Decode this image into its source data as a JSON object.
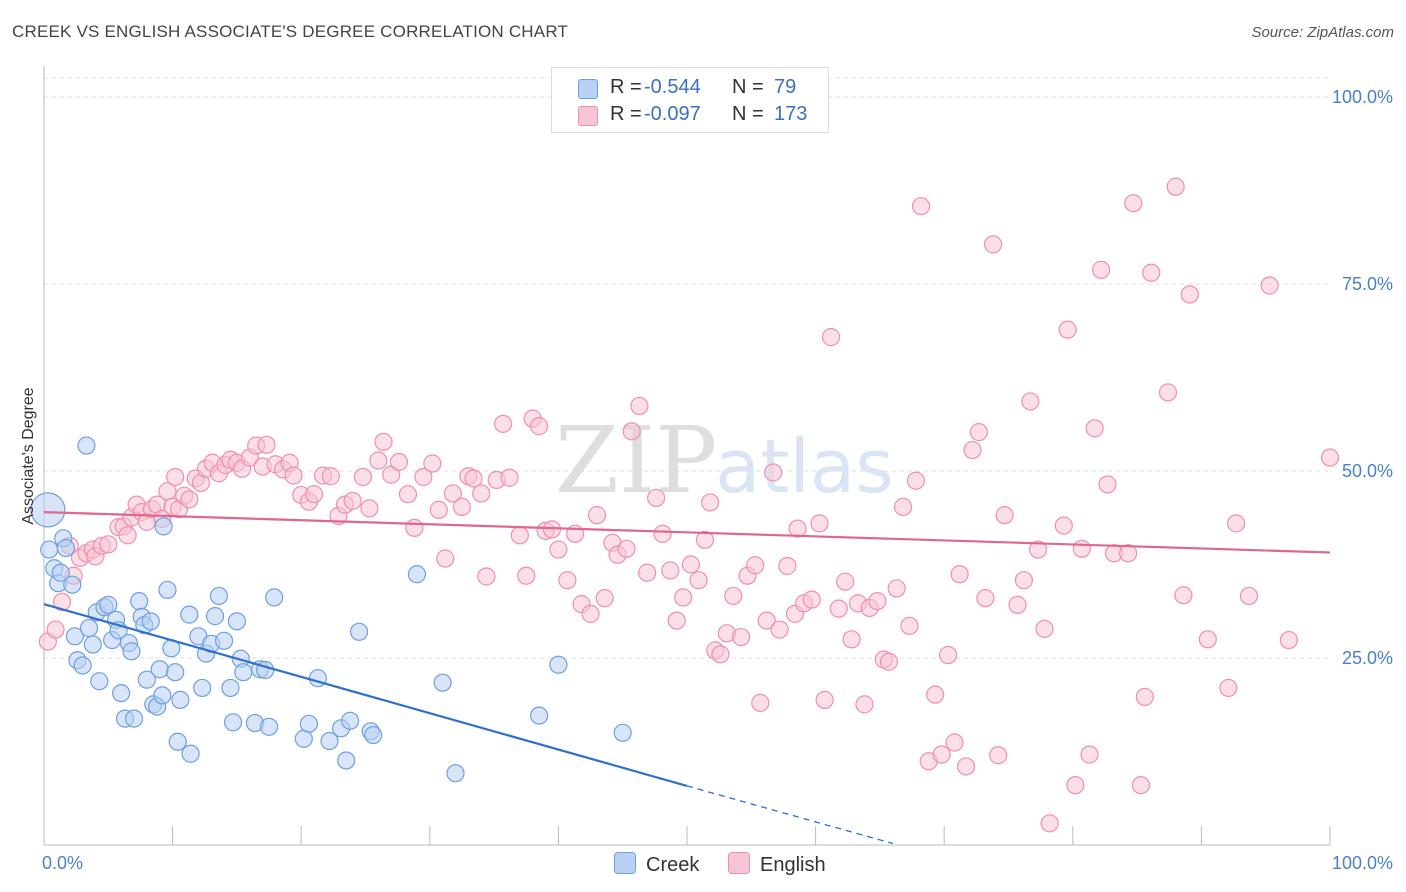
{
  "title": "CREEK VS ENGLISH ASSOCIATE'S DEGREE CORRELATION CHART",
  "source": "Source: ZipAtlas.com",
  "colors": {
    "creek": "#6f9fe0",
    "creek_fill": "#b8d0f2",
    "creek_line": "#2e6fd0",
    "english": "#ef8fae",
    "english_fill": "#f7c4d4",
    "english_line": "#e06690"
  },
  "legend": {
    "creek": {
      "r_label": "R =",
      "r_value": "-0.544",
      "n_label": "N =",
      "n_value": "79"
    },
    "english": {
      "r_label": "R =",
      "r_value": "-0.097",
      "n_label": "N =",
      "n_value": "173"
    }
  },
  "chart_data": {
    "type": "scatter",
    "title": "CREEK VS ENGLISH ASSOCIATE'S DEGREE CORRELATION CHART",
    "xlabel": "",
    "ylabel": "Associate's Degree",
    "xlim": [
      0,
      100
    ],
    "ylim": [
      0,
      100
    ],
    "x_tick_labels": [
      "0.0%",
      "100.0%"
    ],
    "y_tick_labels": [
      "25.0%",
      "50.0%",
      "75.0%",
      "100.0%"
    ],
    "y_ticks": [
      25,
      50,
      75,
      100
    ],
    "grid": true,
    "legend_position": "top-center",
    "series": [
      {
        "name": "Creek",
        "trend": {
          "x": [
            0,
            50
          ],
          "y": [
            32.2,
            7.9
          ],
          "dashed_to": [
            66,
            0.2
          ]
        },
        "points": [
          [
            0.3,
            44.8
          ],
          [
            0.4,
            39.5
          ],
          [
            0.8,
            37.0
          ],
          [
            1.1,
            35.0
          ],
          [
            1.3,
            36.4
          ],
          [
            1.5,
            41.0
          ],
          [
            1.7,
            39.7
          ],
          [
            2.2,
            34.8
          ],
          [
            2.4,
            27.9
          ],
          [
            2.6,
            24.7
          ],
          [
            3.0,
            24.0
          ],
          [
            3.3,
            53.4
          ],
          [
            3.5,
            29.0
          ],
          [
            3.8,
            26.8
          ],
          [
            4.1,
            31.1
          ],
          [
            4.3,
            21.9
          ],
          [
            4.7,
            31.8
          ],
          [
            5.0,
            32.1
          ],
          [
            5.3,
            27.4
          ],
          [
            5.6,
            30.1
          ],
          [
            5.8,
            28.7
          ],
          [
            6.0,
            20.3
          ],
          [
            6.3,
            16.9
          ],
          [
            6.6,
            27.0
          ],
          [
            6.8,
            25.9
          ],
          [
            7.0,
            16.9
          ],
          [
            7.4,
            32.6
          ],
          [
            7.6,
            30.5
          ],
          [
            7.8,
            29.4
          ],
          [
            8.0,
            22.1
          ],
          [
            8.3,
            29.9
          ],
          [
            8.5,
            18.8
          ],
          [
            8.8,
            18.5
          ],
          [
            9.0,
            23.5
          ],
          [
            9.2,
            20.0
          ],
          [
            9.3,
            42.6
          ],
          [
            9.6,
            34.1
          ],
          [
            9.9,
            26.3
          ],
          [
            10.2,
            23.1
          ],
          [
            10.4,
            13.8
          ],
          [
            10.6,
            19.4
          ],
          [
            11.3,
            30.8
          ],
          [
            11.4,
            12.2
          ],
          [
            12.0,
            27.9
          ],
          [
            12.3,
            21.0
          ],
          [
            12.6,
            25.6
          ],
          [
            13.0,
            26.9
          ],
          [
            13.3,
            30.6
          ],
          [
            13.6,
            33.3
          ],
          [
            14.0,
            27.3
          ],
          [
            14.5,
            21.0
          ],
          [
            14.7,
            16.4
          ],
          [
            15.0,
            29.9
          ],
          [
            15.3,
            24.9
          ],
          [
            15.5,
            23.1
          ],
          [
            16.4,
            16.3
          ],
          [
            16.8,
            23.5
          ],
          [
            17.2,
            23.4
          ],
          [
            17.5,
            15.8
          ],
          [
            17.9,
            33.1
          ],
          [
            20.2,
            14.2
          ],
          [
            20.6,
            16.2
          ],
          [
            21.3,
            22.3
          ],
          [
            22.2,
            13.9
          ],
          [
            23.1,
            15.6
          ],
          [
            23.5,
            11.3
          ],
          [
            23.8,
            16.6
          ],
          [
            24.5,
            28.5
          ],
          [
            25.4,
            15.2
          ],
          [
            25.6,
            14.7
          ],
          [
            29.0,
            36.2
          ],
          [
            31.0,
            21.7
          ],
          [
            32.0,
            9.6
          ],
          [
            38.5,
            17.3
          ],
          [
            40.0,
            24.1
          ],
          [
            45.0,
            15.0
          ]
        ]
      },
      {
        "name": "English",
        "trend": {
          "x": [
            0,
            100
          ],
          "y": [
            44.5,
            39.1
          ]
        },
        "points": [
          [
            0.3,
            27.2
          ],
          [
            0.9,
            28.8
          ],
          [
            1.4,
            32.5
          ],
          [
            2.0,
            40.0
          ],
          [
            2.3,
            36.0
          ],
          [
            2.8,
            38.4
          ],
          [
            3.3,
            39.0
          ],
          [
            3.8,
            39.5
          ],
          [
            4.0,
            38.6
          ],
          [
            4.5,
            40.0
          ],
          [
            5.0,
            40.2
          ],
          [
            5.8,
            42.5
          ],
          [
            6.2,
            42.6
          ],
          [
            6.5,
            41.4
          ],
          [
            6.8,
            43.8
          ],
          [
            7.2,
            45.5
          ],
          [
            7.6,
            44.5
          ],
          [
            8.0,
            43.2
          ],
          [
            8.4,
            44.9
          ],
          [
            8.8,
            45.5
          ],
          [
            9.2,
            43.6
          ],
          [
            9.6,
            47.3
          ],
          [
            10.0,
            45.2
          ],
          [
            10.2,
            49.2
          ],
          [
            10.5,
            44.9
          ],
          [
            10.9,
            46.7
          ],
          [
            11.3,
            46.2
          ],
          [
            11.8,
            49.0
          ],
          [
            12.2,
            48.4
          ],
          [
            12.6,
            50.3
          ],
          [
            13.1,
            51.1
          ],
          [
            13.6,
            49.7
          ],
          [
            14.1,
            50.8
          ],
          [
            14.5,
            51.5
          ],
          [
            15.0,
            51.1
          ],
          [
            15.4,
            50.3
          ],
          [
            16.0,
            51.8
          ],
          [
            16.5,
            53.4
          ],
          [
            17.0,
            50.6
          ],
          [
            17.3,
            53.5
          ],
          [
            18.0,
            50.9
          ],
          [
            18.6,
            50.2
          ],
          [
            19.1,
            51.1
          ],
          [
            19.4,
            49.4
          ],
          [
            20.0,
            46.8
          ],
          [
            20.6,
            45.9
          ],
          [
            21.0,
            46.9
          ],
          [
            21.7,
            49.4
          ],
          [
            22.3,
            49.3
          ],
          [
            22.9,
            44.0
          ],
          [
            23.4,
            45.5
          ],
          [
            24.0,
            46.0
          ],
          [
            24.8,
            49.2
          ],
          [
            25.3,
            45.0
          ],
          [
            26.0,
            51.4
          ],
          [
            26.4,
            53.9
          ],
          [
            27.0,
            49.5
          ],
          [
            27.6,
            51.2
          ],
          [
            28.3,
            46.9
          ],
          [
            28.8,
            42.4
          ],
          [
            29.5,
            49.2
          ],
          [
            30.2,
            51.0
          ],
          [
            30.7,
            44.8
          ],
          [
            31.2,
            38.3
          ],
          [
            31.8,
            47.0
          ],
          [
            32.5,
            45.2
          ],
          [
            33.0,
            49.3
          ],
          [
            33.4,
            49.0
          ],
          [
            34.0,
            47.0
          ],
          [
            34.4,
            35.9
          ],
          [
            35.2,
            48.8
          ],
          [
            35.7,
            56.3
          ],
          [
            36.2,
            49.1
          ],
          [
            37.0,
            41.4
          ],
          [
            37.5,
            36.0
          ],
          [
            38.0,
            57.0
          ],
          [
            38.5,
            56.0
          ],
          [
            39.0,
            42.0
          ],
          [
            39.5,
            42.2
          ],
          [
            40.0,
            39.5
          ],
          [
            40.7,
            35.4
          ],
          [
            41.3,
            41.6
          ],
          [
            41.8,
            32.2
          ],
          [
            42.5,
            30.9
          ],
          [
            43.0,
            44.1
          ],
          [
            43.6,
            33.0
          ],
          [
            44.2,
            40.4
          ],
          [
            44.6,
            38.8
          ],
          [
            45.3,
            39.6
          ],
          [
            45.7,
            55.3
          ],
          [
            46.3,
            58.7
          ],
          [
            46.9,
            36.4
          ],
          [
            47.6,
            46.4
          ],
          [
            48.1,
            41.6
          ],
          [
            48.7,
            36.7
          ],
          [
            49.2,
            30.0
          ],
          [
            49.7,
            33.1
          ],
          [
            50.3,
            37.5
          ],
          [
            50.9,
            35.4
          ],
          [
            51.4,
            40.8
          ],
          [
            51.8,
            45.8
          ],
          [
            52.2,
            26.0
          ],
          [
            52.6,
            25.5
          ],
          [
            53.1,
            28.3
          ],
          [
            53.6,
            33.3
          ],
          [
            54.2,
            27.8
          ],
          [
            54.7,
            36.0
          ],
          [
            55.3,
            37.4
          ],
          [
            55.7,
            19.0
          ],
          [
            56.2,
            30.0
          ],
          [
            56.7,
            49.8
          ],
          [
            57.2,
            28.8
          ],
          [
            57.8,
            37.3
          ],
          [
            58.4,
            30.9
          ],
          [
            58.6,
            42.3
          ],
          [
            59.1,
            32.3
          ],
          [
            59.7,
            32.8
          ],
          [
            60.3,
            43.0
          ],
          [
            60.7,
            19.4
          ],
          [
            61.2,
            67.9
          ],
          [
            61.8,
            31.6
          ],
          [
            62.3,
            35.2
          ],
          [
            62.8,
            27.5
          ],
          [
            63.3,
            32.3
          ],
          [
            63.8,
            18.8
          ],
          [
            64.2,
            31.7
          ],
          [
            64.8,
            32.6
          ],
          [
            65.3,
            24.8
          ],
          [
            65.7,
            24.5
          ],
          [
            66.3,
            34.3
          ],
          [
            66.8,
            45.2
          ],
          [
            67.3,
            29.3
          ],
          [
            67.8,
            48.7
          ],
          [
            68.2,
            85.4
          ],
          [
            68.8,
            11.2
          ],
          [
            69.3,
            20.1
          ],
          [
            69.8,
            12.1
          ],
          [
            70.3,
            25.4
          ],
          [
            70.8,
            13.7
          ],
          [
            71.2,
            36.2
          ],
          [
            71.7,
            10.5
          ],
          [
            72.2,
            52.8
          ],
          [
            72.7,
            55.2
          ],
          [
            73.2,
            33.0
          ],
          [
            73.8,
            80.3
          ],
          [
            74.2,
            12.0
          ],
          [
            74.7,
            44.1
          ],
          [
            75.7,
            32.1
          ],
          [
            76.2,
            35.4
          ],
          [
            76.7,
            59.3
          ],
          [
            77.3,
            39.5
          ],
          [
            77.8,
            28.9
          ],
          [
            78.2,
            2.9
          ],
          [
            79.3,
            42.7
          ],
          [
            79.6,
            68.9
          ],
          [
            80.2,
            8.0
          ],
          [
            80.7,
            39.6
          ],
          [
            81.3,
            12.1
          ],
          [
            81.7,
            55.7
          ],
          [
            82.2,
            76.9
          ],
          [
            82.7,
            48.2
          ],
          [
            83.2,
            39.0
          ],
          [
            84.3,
            39.0
          ],
          [
            84.7,
            85.8
          ],
          [
            85.3,
            8.0
          ],
          [
            85.6,
            19.8
          ],
          [
            86.1,
            76.5
          ],
          [
            87.4,
            60.5
          ],
          [
            88.0,
            88.0
          ],
          [
            88.6,
            33.4
          ],
          [
            89.1,
            73.6
          ],
          [
            90.5,
            27.5
          ],
          [
            92.1,
            21.0
          ],
          [
            92.7,
            43.0
          ],
          [
            93.7,
            33.3
          ],
          [
            95.3,
            74.8
          ],
          [
            96.8,
            27.4
          ],
          [
            100,
            51.8
          ]
        ]
      }
    ]
  }
}
